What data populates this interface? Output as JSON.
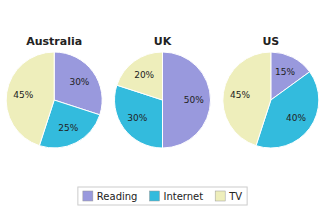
{
  "chart_data": [
    {
      "type": "pie",
      "title": "Australia",
      "categories": [
        "Reading",
        "Internet",
        "TV"
      ],
      "values": [
        30,
        25,
        45
      ],
      "value_labels": [
        "30%",
        "25%",
        "45%"
      ],
      "colors": [
        "#9999dd",
        "#33bbdd",
        "#eeeebb"
      ],
      "data_labels": true,
      "legend": "bottom"
    },
    {
      "type": "pie",
      "title": "UK",
      "categories": [
        "Reading",
        "Internet",
        "TV"
      ],
      "values": [
        50,
        30,
        20
      ],
      "value_labels": [
        "50%",
        "30%",
        "20%"
      ],
      "colors": [
        "#9999dd",
        "#33bbdd",
        "#eeeebb"
      ],
      "data_labels": true
    },
    {
      "type": "pie",
      "title": "US",
      "categories": [
        "Reading",
        "Internet",
        "TV"
      ],
      "values": [
        15,
        40,
        45
      ],
      "value_labels": [
        "15%",
        "40%",
        "45%"
      ],
      "colors": [
        "#9999dd",
        "#33bbdd",
        "#eeeebb"
      ],
      "data_labels": true
    }
  ]
}
